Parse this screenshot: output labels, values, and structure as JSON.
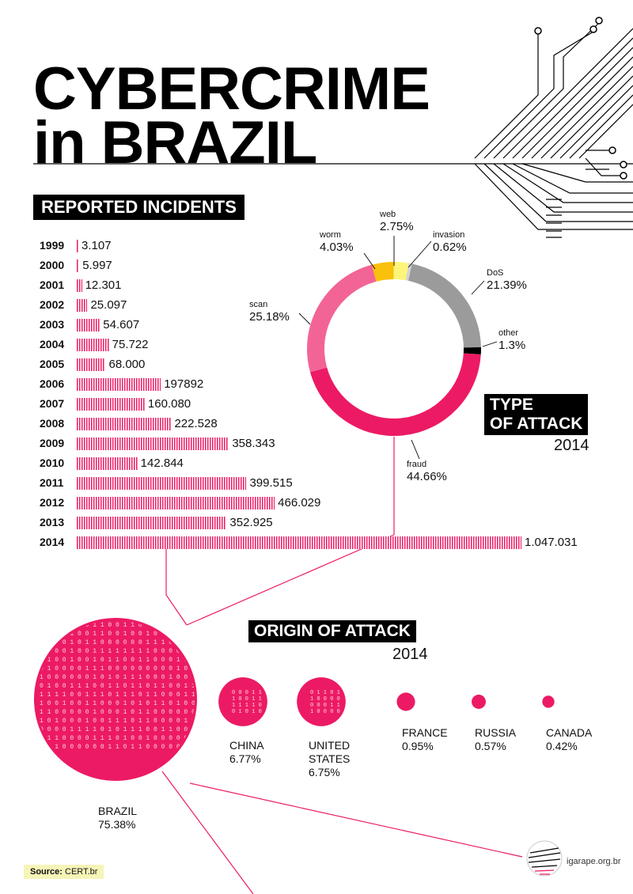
{
  "header": {
    "title_line1": "CYBERCRIME",
    "title_line2": "in BRAZIL"
  },
  "sections": {
    "reported_incidents": "REPORTED INCIDENTS",
    "type_of_attack_line1": "TYPE",
    "type_of_attack_line2": "OF ATTACK",
    "type_of_attack_year": "2014",
    "origin_of_attack": "ORIGIN OF ATTACK",
    "origin_of_attack_year": "2014"
  },
  "chart_data": [
    {
      "type": "bar",
      "title": "REPORTED INCIDENTS",
      "orientation": "horizontal",
      "categories": [
        "1999",
        "2000",
        "2001",
        "2002",
        "2003",
        "2004",
        "2005",
        "2006",
        "2007",
        "2008",
        "2009",
        "2010",
        "2011",
        "2012",
        "2013",
        "2014"
      ],
      "values": [
        3107,
        5997,
        12301,
        25097,
        54607,
        75722,
        68000,
        197892,
        160080,
        222528,
        358343,
        142844,
        399515,
        466029,
        352925,
        1047031
      ],
      "value_labels": [
        "3.107",
        "5.997",
        "12.301",
        "25.097",
        "54.607",
        "75.722",
        "68.000",
        "197892",
        "160.080",
        "222.528",
        "358.343",
        "142.844",
        "399.515",
        "466.029",
        "352.925",
        "1.047.031"
      ],
      "color": "#ec1a64"
    },
    {
      "type": "pie",
      "variant": "donut",
      "title": "TYPE OF ATTACK 2014",
      "slices": [
        {
          "name": "fraud",
          "value": 44.66,
          "label": "44.66%",
          "color": "#ec1a64"
        },
        {
          "name": "scan",
          "value": 25.18,
          "label": "25.18%",
          "color": "#f36496"
        },
        {
          "name": "worm",
          "value": 4.03,
          "label": "4.03%",
          "color": "#f9c00c"
        },
        {
          "name": "web",
          "value": 2.75,
          "label": "2.75%",
          "color": "#fdf57a"
        },
        {
          "name": "invasion",
          "value": 0.62,
          "label": "0.62%",
          "color": "#d4d4d4"
        },
        {
          "name": "DoS",
          "value": 21.39,
          "label": "21.39%",
          "color": "#9b9b9b"
        },
        {
          "name": "other",
          "value": 1.3,
          "label": "1.3%",
          "color": "#000000"
        }
      ]
    },
    {
      "type": "scatter",
      "variant": "bubble",
      "title": "ORIGIN OF ATTACK 2014",
      "points": [
        {
          "name": "BRAZIL",
          "value": 75.38,
          "label": "75.38%"
        },
        {
          "name": "CHINA",
          "value": 6.77,
          "label": "6.77%"
        },
        {
          "name": "UNITED STATES",
          "value": 6.75,
          "label": "6.75%"
        },
        {
          "name": "FRANCE",
          "value": 0.95,
          "label": "0.95%"
        },
        {
          "name": "RUSSIA",
          "value": 0.57,
          "label": "0.57%"
        },
        {
          "name": "CANADA",
          "value": 0.42,
          "label": "0.42%"
        }
      ],
      "color": "#ec1a64"
    }
  ],
  "labels": {
    "brazil": "BRAZIL",
    "china": "CHINA",
    "us_line1": "UNITED",
    "us_line2": "STATES",
    "france": "FRANCE",
    "russia": "RUSSIA",
    "canada": "CANADA"
  },
  "footer": {
    "source_label": "Source:",
    "source_value": "CERT.br",
    "site": "igarape.org.br"
  },
  "colors": {
    "accent": "#ec1a64",
    "text": "#111111",
    "label_bg": "#000000"
  }
}
